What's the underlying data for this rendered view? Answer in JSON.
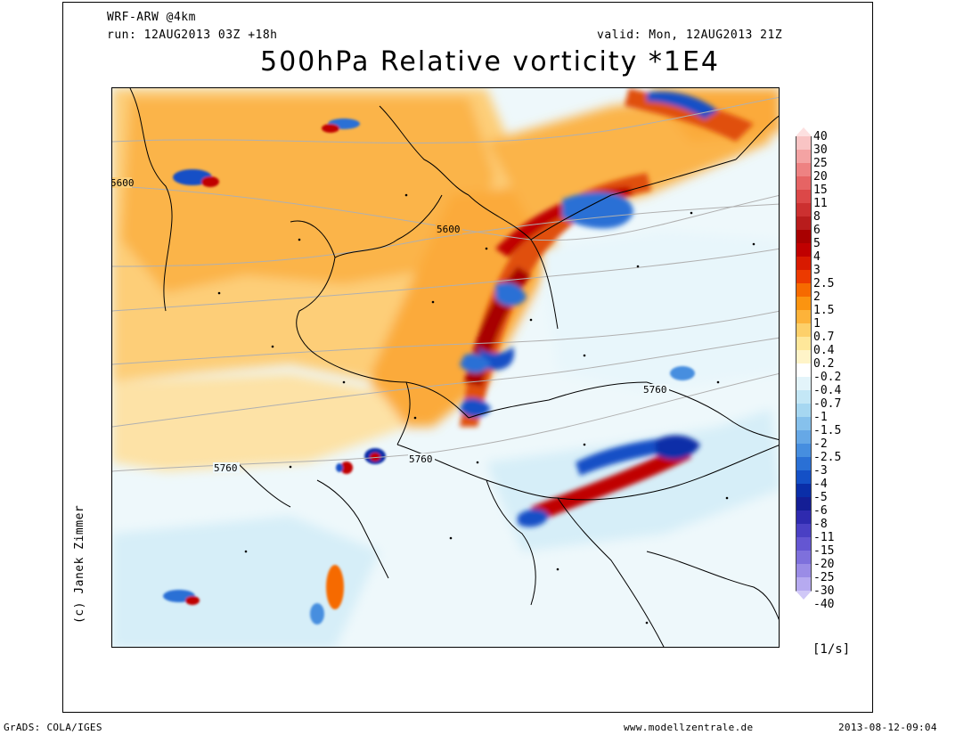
{
  "header": {
    "model": "WRF-ARW @4km",
    "run": "run: 12AUG2013 03Z +18h",
    "valid": "valid: Mon, 12AUG2013 21Z",
    "title": "500hPa Relative vorticity *1E4"
  },
  "credit": "(c) Janek Zimmer",
  "unit": "[1/s]",
  "colorbar": {
    "levels": [
      "40",
      "30",
      "25",
      "20",
      "15",
      "11",
      "8",
      "6",
      "5",
      "4",
      "3",
      "2.5",
      "2",
      "1.5",
      "1",
      "0.7",
      "0.4",
      "0.2",
      "-0.2",
      "-0.4",
      "-0.7",
      "-1",
      "-1.5",
      "-2",
      "-2.5",
      "-3",
      "-4",
      "-5",
      "-6",
      "-8",
      "-11",
      "-15",
      "-20",
      "-25",
      "-30",
      "-40"
    ],
    "colors": [
      "#fde0e0",
      "#f9c4c4",
      "#f4a3a3",
      "#ee8282",
      "#e66464",
      "#dc4848",
      "#cc3030",
      "#b81c1c",
      "#a80000",
      "#c00000",
      "#d81a00",
      "#ec3a00",
      "#f66a00",
      "#fb9410",
      "#fdb33a",
      "#fdd06a",
      "#fee79a",
      "#fff4c8",
      "#ffffff",
      "#e3f4fa",
      "#c4e7f6",
      "#a6d7f1",
      "#86c1ec",
      "#66a8e6",
      "#468edf",
      "#2a70d5",
      "#1450c6",
      "#0a2ea8",
      "#141e95",
      "#2e2aaf",
      "#4a40c4",
      "#6456d2",
      "#7e70dc",
      "#9a8ce6",
      "#b6aaf0",
      "#d0c8f7"
    ]
  },
  "contours": {
    "labels": [
      "5600",
      "5600",
      "5760",
      "5760",
      "5760"
    ]
  },
  "footer": {
    "left": "GrADS: COLA/IGES",
    "center": "www.modellzentrale.de",
    "right": "2013-08-12-09:04"
  }
}
